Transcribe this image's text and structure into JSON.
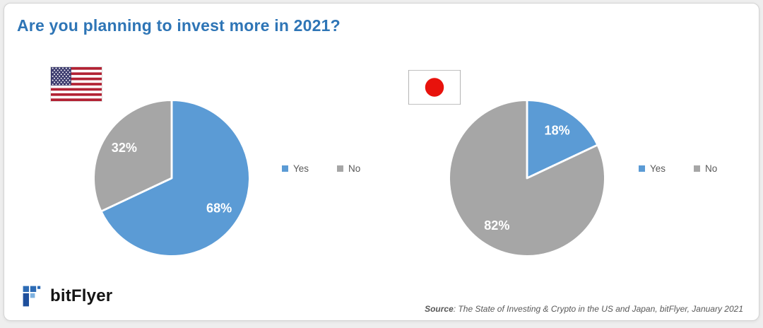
{
  "page": {
    "title": "Are you planning to invest more in 2021?"
  },
  "colors": {
    "yes": "#5B9BD5",
    "no": "#A6A6A6",
    "title": "#2E75B6"
  },
  "icons": {
    "us_flag": "us-flag",
    "japan_flag": "japan-flag",
    "logo": "bitflyer-logo"
  },
  "chart_data": [
    {
      "type": "pie",
      "group": "United States",
      "categories": [
        "Yes",
        "No"
      ],
      "values": [
        68,
        32
      ],
      "labels": [
        "68%",
        "32%"
      ],
      "colors": [
        "#5B9BD5",
        "#A6A6A6"
      ],
      "legend": [
        "Yes",
        "No"
      ],
      "legend_position": "right",
      "start_angle_deg": 0,
      "direction": "clockwise",
      "label_radius": 0.72
    },
    {
      "type": "pie",
      "group": "Japan",
      "categories": [
        "Yes",
        "No"
      ],
      "values": [
        18,
        82
      ],
      "labels": [
        "18%",
        "82%"
      ],
      "colors": [
        "#5B9BD5",
        "#A6A6A6"
      ],
      "legend": [
        "Yes",
        "No"
      ],
      "legend_position": "right",
      "start_angle_deg": 0,
      "direction": "clockwise",
      "label_radius": 0.72
    }
  ],
  "brand": {
    "logo_text": "bitFlyer"
  },
  "source": {
    "label": "Source",
    "rest": ": The State of Investing & Crypto in the US and Japan, bitFlyer, January 2021"
  }
}
